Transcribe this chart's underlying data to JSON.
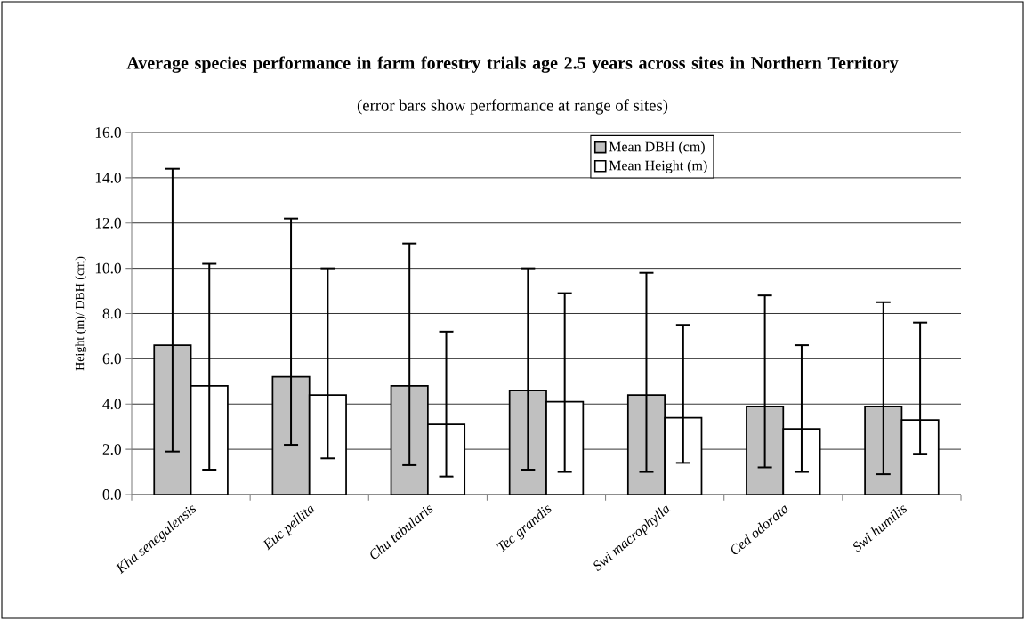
{
  "chart_data": {
    "type": "bar",
    "title": "Average species performance in farm forestry trials age 2.5 years across sites in Northern Territory",
    "subtitle": "(error bars show performance at range of sites)",
    "ylabel": "Height (m)/ DBH (cm)",
    "categories": [
      "*Kha senegalensis*",
      "*Euc pellita*",
      "*Chu tabularis*",
      "*Tec grandis*",
      "*Swi macrophylla*",
      "*Ced odorata*",
      "*Swi humilis*"
    ],
    "series": [
      {
        "name": "Mean DBH (cm)",
        "color": "#c0c0c0",
        "values": [
          6.6,
          5.2,
          4.8,
          4.6,
          4.4,
          3.9,
          3.9
        ],
        "errors": [
          [
            1.9,
            14.4
          ],
          [
            2.2,
            12.2
          ],
          [
            1.3,
            11.1
          ],
          [
            1.1,
            10.0
          ],
          [
            1.0,
            9.8
          ],
          [
            1.2,
            8.8
          ],
          [
            0.9,
            8.5
          ]
        ]
      },
      {
        "name": "Mean Height (m)",
        "color": "#ffffff",
        "values": [
          4.8,
          4.4,
          3.1,
          4.1,
          3.4,
          2.9,
          3.3
        ],
        "errors": [
          [
            1.1,
            10.2
          ],
          [
            1.6,
            10.0
          ],
          [
            0.8,
            7.2
          ],
          [
            1.0,
            8.9
          ],
          [
            1.4,
            7.5
          ],
          [
            1.0,
            6.6
          ],
          [
            1.8,
            7.6
          ]
        ]
      }
    ],
    "ylim": [
      0,
      16
    ],
    "yticks": [
      {
        "value": 0,
        "label": "0.0"
      },
      {
        "value": 2,
        "label": "2.0"
      },
      {
        "value": 4,
        "label": "4.0"
      },
      {
        "value": 6,
        "label": "6.0"
      },
      {
        "value": 8,
        "label": "8.0"
      },
      {
        "value": 10,
        "label": "10.0"
      },
      {
        "value": 12,
        "label": "12.0"
      },
      {
        "value": 14,
        "label": "14.0"
      },
      {
        "value": 16,
        "label": "16.0"
      }
    ],
    "grid": "y",
    "legend": "top right"
  }
}
